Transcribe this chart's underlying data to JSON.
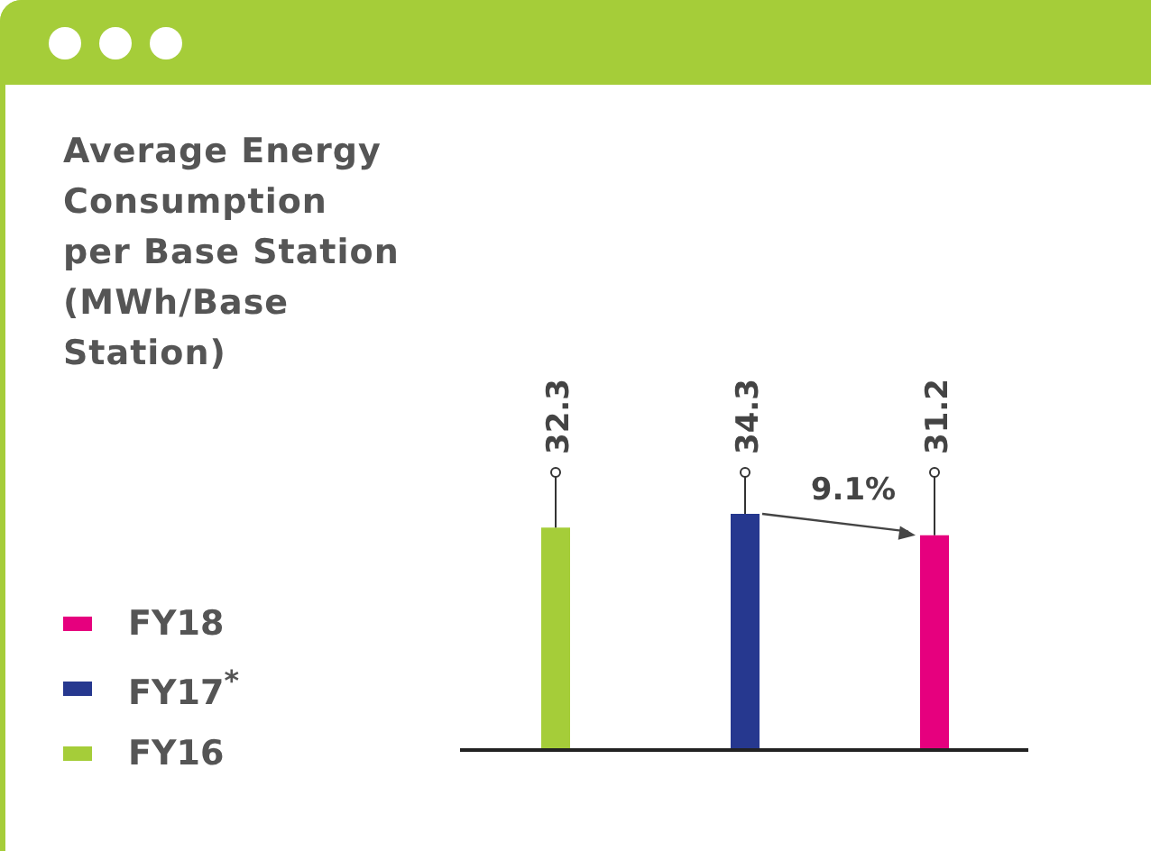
{
  "chart_data": {
    "type": "bar",
    "title": "Average Energy Consumption per Base Station (MWh/Base Station)",
    "categories": [
      null,
      null,
      null
    ],
    "series": [
      {
        "name": "FY16",
        "color": "#a5cd39",
        "values": [
          32.3,
          null,
          null
        ]
      },
      {
        "name": "FY17$^{*}$",
        "color": "#26388f",
        "values": [
          null,
          34.3,
          null
        ]
      },
      {
        "name": "FY18",
        "color": "#e6007e",
        "values": [
          null,
          null,
          31.2
        ]
      }
    ],
    "stacked": true,
    "data_labels": true,
    "legend": "left",
    "annotations": [
      "9.1%"
    ]
  }
}
